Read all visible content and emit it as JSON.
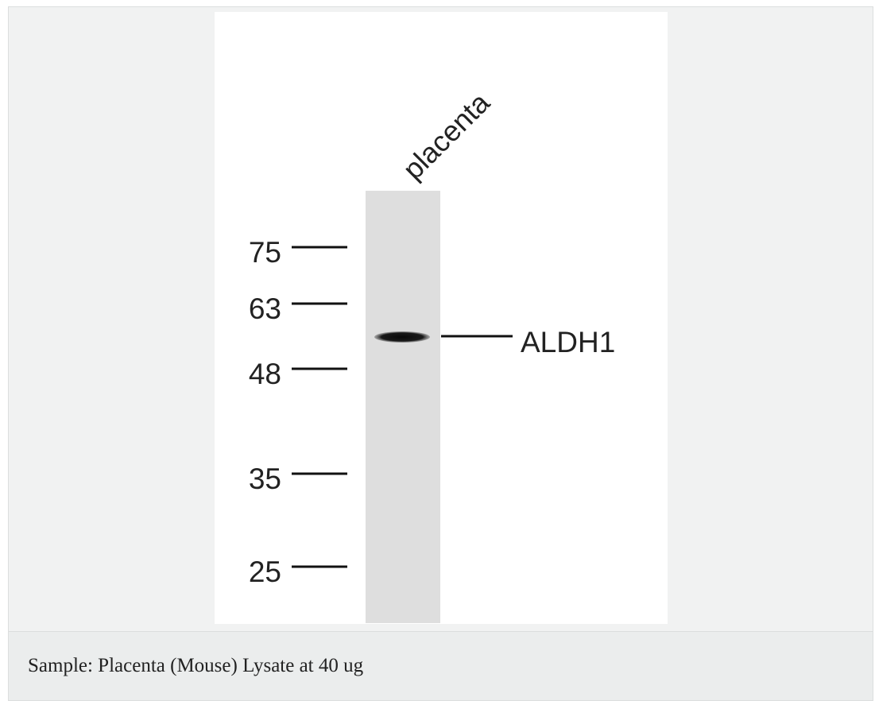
{
  "figure": {
    "lane_label": "placenta",
    "markers": [
      "75",
      "63",
      "48",
      "35",
      "25"
    ],
    "band_label": "ALDH1"
  },
  "caption": "Sample: Placenta (Mouse) Lysate at 40 ug"
}
